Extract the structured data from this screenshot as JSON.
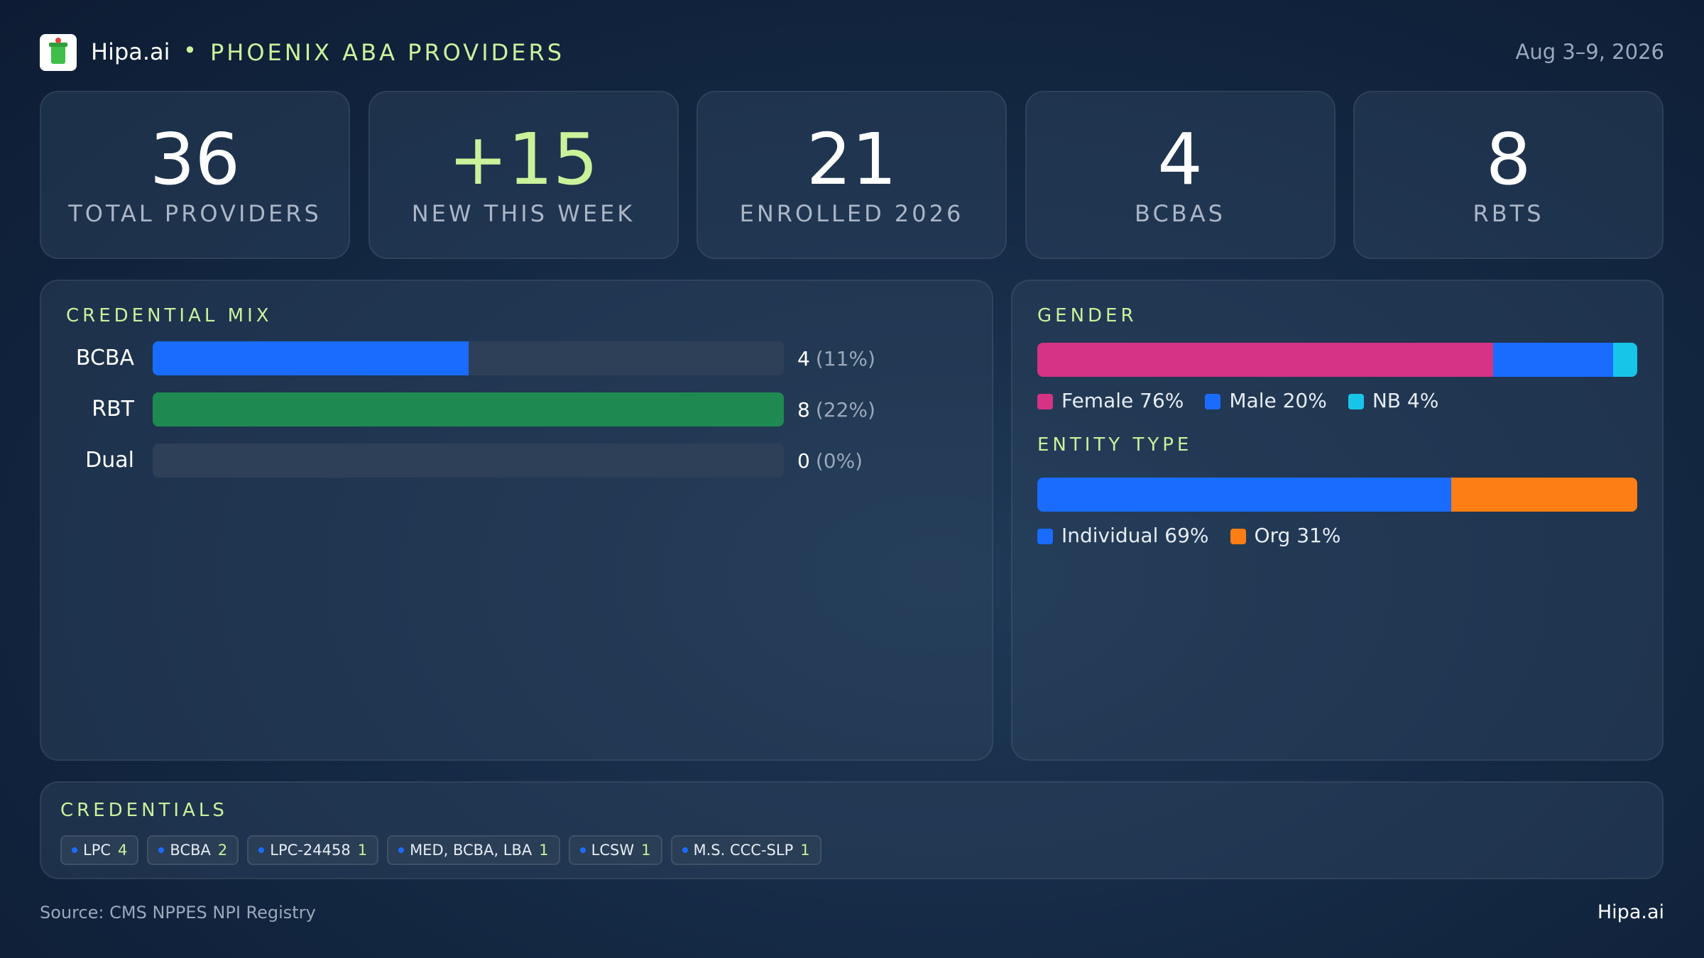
{
  "header": {
    "brand": "Hipa.ai",
    "title": "PHOENIX ABA PROVIDERS",
    "date": "Aug 3–9, 2026"
  },
  "kpis": [
    {
      "value": "36",
      "label": "TOTAL  PROVIDERS",
      "accent": false
    },
    {
      "value": "+15",
      "label": "NEW THIS WEEK",
      "accent": true
    },
    {
      "value": "21",
      "label": "ENROLLED 2026",
      "accent": false
    },
    {
      "value": "4",
      "label": "BCBAS",
      "accent": false
    },
    {
      "value": "8",
      "label": "RBTS",
      "accent": false
    }
  ],
  "credential_mix": {
    "title": "CREDENTIAL  MIX",
    "rows": [
      {
        "label": "BCBA",
        "value": 4,
        "share": "(11%)",
        "color": "#1a6cff"
      },
      {
        "label": "RBT",
        "value": 8,
        "share": "(22%)",
        "color": "#1e8a52"
      },
      {
        "label": "Dual",
        "value": 0,
        "share": "(0%)",
        "color": "#1a6cff"
      }
    ]
  },
  "gender": {
    "title": "GENDER",
    "segments": [
      {
        "label": "Female 76%",
        "value": 76,
        "color": "#d63384"
      },
      {
        "label": "Male 20%",
        "value": 20,
        "color": "#1a6cff"
      },
      {
        "label": "NB 4%",
        "value": 4,
        "color": "#17c5e8"
      }
    ]
  },
  "entity_type": {
    "title": "ENTITY TYPE",
    "segments": [
      {
        "label": "Individual 69%",
        "value": 69,
        "color": "#1a6cff"
      },
      {
        "label": "Org 31%",
        "value": 31,
        "color": "#fd7e14"
      }
    ]
  },
  "credentials": {
    "title": "CREDENTIALS",
    "items": [
      {
        "label": "LPC",
        "count": 4
      },
      {
        "label": "BCBA",
        "count": 2
      },
      {
        "label": "LPC-24458",
        "count": 1
      },
      {
        "label": "MED, BCBA, LBA",
        "count": 1
      },
      {
        "label": "LCSW",
        "count": 1
      },
      {
        "label": "M.S. CCC-SLP",
        "count": 1
      }
    ]
  },
  "footer": {
    "source": "Source: CMS NPPES NPI Registry",
    "brand": "Hipa.ai"
  }
}
